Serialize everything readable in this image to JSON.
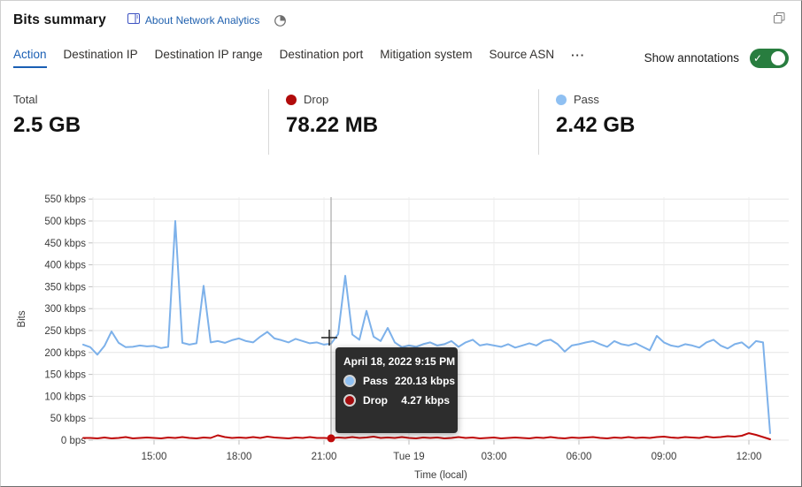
{
  "colors": {
    "accent_blue": "#1a5fb4",
    "link_blue": "#2061af",
    "pass_line": "#7db1ea",
    "drop_line": "#bf0a0a",
    "pass_dot": "#8fc0f2",
    "drop_dot": "#b10b0b",
    "toggle_green": "#287d3f",
    "tooltip_bg": "#2d2d2d"
  },
  "header": {
    "title": "Bits summary",
    "about_link": "About Network Analytics",
    "icons": [
      "book-icon",
      "pie-chart-icon",
      "restore-window-icon"
    ]
  },
  "tabs": {
    "items": [
      {
        "label": "Action",
        "active": true
      },
      {
        "label": "Destination IP",
        "active": false
      },
      {
        "label": "Destination IP range",
        "active": false
      },
      {
        "label": "Destination port",
        "active": false
      },
      {
        "label": "Mitigation system",
        "active": false
      },
      {
        "label": "Source ASN",
        "active": false
      }
    ],
    "more_label": "···",
    "show_annotations_label": "Show annotations",
    "annotations_on": true,
    "toggle_check": "✓"
  },
  "stats": {
    "items": [
      {
        "label": "Total",
        "value": "2.5 GB",
        "dot_color": ""
      },
      {
        "label": "Drop",
        "value": "78.22 MB",
        "dot_color": "#b10b0b"
      },
      {
        "label": "Pass",
        "value": "2.42 GB",
        "dot_color": "#8fc0f2"
      }
    ]
  },
  "tooltip": {
    "title": "April 18, 2022 9:15 PM",
    "rows": [
      {
        "name": "Pass",
        "value": "220.13 kbps",
        "color": "#8fc0f2"
      },
      {
        "name": "Drop",
        "value": "4.27 kbps",
        "color": "#a50d0f"
      }
    ]
  },
  "chart_data": {
    "type": "line",
    "title": "Bits summary",
    "ylabel": "Bits",
    "xlabel": "Time (local)",
    "y_unit": "kbps",
    "ylim": [
      0,
      550
    ],
    "grid": true,
    "x_start": "Apr 18, 2022 12:30 PM",
    "x_interval_minutes": 15,
    "hover_index": 35,
    "hover": {
      "time": "April 18, 2022 9:15 PM",
      "pass_kbps": 220.13,
      "drop_kbps": 4.27
    },
    "y_ticks": [
      {
        "v": 550,
        "label": "550 kbps"
      },
      {
        "v": 500,
        "label": "500 kbps"
      },
      {
        "v": 450,
        "label": "450 kbps"
      },
      {
        "v": 400,
        "label": "400 kbps"
      },
      {
        "v": 350,
        "label": "350 kbps"
      },
      {
        "v": 300,
        "label": "300 kbps"
      },
      {
        "v": 250,
        "label": "250 kbps"
      },
      {
        "v": 200,
        "label": "200 kbps"
      },
      {
        "v": 150,
        "label": "150 kbps"
      },
      {
        "v": 100,
        "label": "100 kbps"
      },
      {
        "v": 50,
        "label": "50 kbps"
      },
      {
        "v": 0,
        "label": "0 bps"
      }
    ],
    "x_ticks": [
      {
        "i": 10,
        "label": "15:00"
      },
      {
        "i": 22,
        "label": "18:00"
      },
      {
        "i": 34,
        "label": "21:00"
      },
      {
        "i": 46,
        "label": "Tue 19"
      },
      {
        "i": 58,
        "label": "03:00"
      },
      {
        "i": 70,
        "label": "06:00"
      },
      {
        "i": 82,
        "label": "09:00"
      },
      {
        "i": 94,
        "label": "12:00"
      }
    ],
    "series": [
      {
        "name": "Pass",
        "color": "#7db1ea",
        "values": [
          218,
          212,
          195,
          215,
          248,
          222,
          212,
          213,
          216,
          214,
          215,
          210,
          213,
          500,
          222,
          218,
          221,
          352,
          223,
          226,
          222,
          228,
          232,
          226,
          223,
          236,
          247,
          232,
          228,
          223,
          231,
          226,
          221,
          223,
          218,
          220.13,
          242,
          375,
          241,
          229,
          295,
          236,
          226,
          256,
          223,
          212,
          216,
          213,
          219,
          223,
          216,
          219,
          226,
          213,
          223,
          229,
          216,
          219,
          216,
          213,
          219,
          211,
          216,
          221,
          216,
          226,
          229,
          219,
          202,
          216,
          219,
          223,
          226,
          219,
          213,
          226,
          219,
          216,
          221,
          213,
          205,
          238,
          223,
          216,
          213,
          219,
          216,
          211,
          223,
          229,
          216,
          209,
          219,
          223,
          210,
          226,
          223,
          16
        ]
      },
      {
        "name": "Drop",
        "color": "#bf0a0a",
        "values": [
          5,
          5,
          4,
          6,
          4,
          5,
          7,
          4,
          5,
          6,
          5,
          4,
          6,
          5,
          7,
          5,
          4,
          6,
          5,
          11,
          7,
          5,
          6,
          5,
          7,
          5,
          8,
          6,
          5,
          4,
          6,
          5,
          7,
          5,
          5,
          4.27,
          6,
          5,
          7,
          5,
          6,
          8,
          5,
          6,
          5,
          7,
          5,
          4,
          6,
          5,
          6,
          4,
          5,
          7,
          5,
          6,
          4,
          5,
          6,
          4,
          5,
          6,
          5,
          4,
          6,
          5,
          7,
          5,
          4,
          6,
          5,
          6,
          7,
          5,
          4,
          6,
          5,
          7,
          5,
          6,
          5,
          7,
          8,
          6,
          5,
          7,
          6,
          5,
          8,
          6,
          7,
          9,
          8,
          10,
          16,
          12,
          7,
          2
        ]
      }
    ]
  }
}
